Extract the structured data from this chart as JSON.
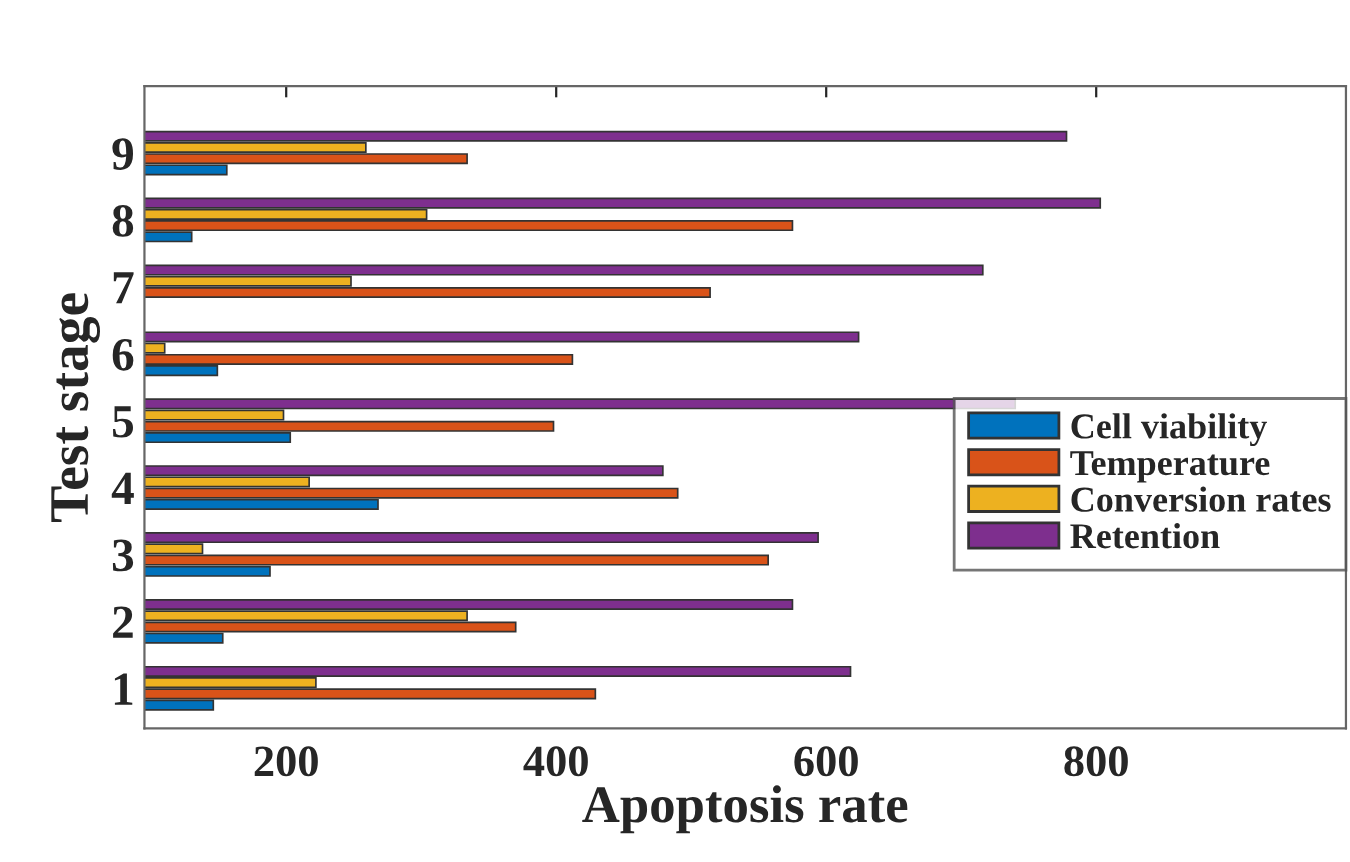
{
  "chart_data": {
    "type": "bar",
    "orientation": "horizontal",
    "xlabel": "Apoptosis rate",
    "ylabel": "Test stage",
    "categories": [
      "9",
      "8",
      "7",
      "6",
      "5",
      "4",
      "3",
      "2",
      "1"
    ],
    "series": [
      {
        "name": "Cell viability",
        "color": "#0072bd",
        "values": [
          156,
          130,
          null,
          149,
          203,
          268,
          188,
          153,
          146
        ]
      },
      {
        "name": "Temperature",
        "color": "#d95319",
        "values": [
          334,
          575,
          514,
          412,
          398,
          490,
          557,
          370,
          429
        ]
      },
      {
        "name": "Conversion rates",
        "color": "#edb120",
        "values": [
          259,
          304,
          248,
          110,
          198,
          217,
          138,
          334,
          222
        ]
      },
      {
        "name": "Retention",
        "color": "#7e2f8e",
        "values": [
          778,
          803,
          716,
          624,
          740,
          479,
          594,
          575,
          618
        ]
      }
    ],
    "xlim": [
      95,
      985
    ],
    "xticks": [
      200,
      400,
      600,
      800
    ],
    "grid": false,
    "legend": "right"
  }
}
